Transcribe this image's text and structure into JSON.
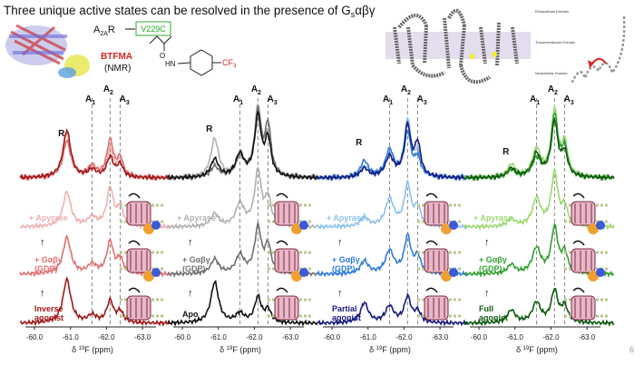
{
  "title": {
    "main": "Three unique active states can be resolved in the presence of G",
    "sub": "s",
    "tail": "αβγ"
  },
  "construct": {
    "receptor": "A",
    "receptor_sub": "2A",
    "receptor_tail": "R",
    "mutation": "V229C"
  },
  "probe": {
    "name": "BTFMA",
    "method": "(NMR)",
    "oxygen": "O",
    "amine": "HN",
    "cf": "CF",
    "cf_sub": "3"
  },
  "membrane_labels": [
    "Extracellular Domain",
    "Transmembrane Domain",
    "Intracellular Domain"
  ],
  "page_number": "6",
  "panels": [
    {
      "peaks": {
        "r": "R",
        "a1": "A",
        "a1_sub": "1",
        "a2": "A",
        "a2_sub": "2",
        "a3": "A",
        "a3_sub": "3"
      },
      "apyrase": "+ Apyrase",
      "gprotein": [
        "+ Gαβγ",
        "(GDP)"
      ],
      "ligand": [
        "Inverse",
        "agonist"
      ],
      "ticks": [
        "-60.0",
        "-61.0",
        "-62.0",
        "-63.0"
      ],
      "axis": {
        "pre": "δ ",
        "sup": "19",
        "post": "F (ppm)"
      }
    },
    {
      "peaks": {
        "r": "R",
        "a1": "A",
        "a1_sub": "1",
        "a2": "A",
        "a2_sub": "2",
        "a3": "A",
        "a3_sub": "3"
      },
      "apyrase": "+ Apyrase",
      "gprotein": [
        "+ Gαβγ",
        "(GDP)"
      ],
      "ligand": [
        "Apo"
      ],
      "ticks": [
        "-60.0",
        "-61.0",
        "-62.0",
        "-63.0"
      ],
      "axis": {
        "pre": "δ ",
        "sup": "19",
        "post": "F (ppm)"
      }
    },
    {
      "peaks": {
        "r": "R",
        "a1": "A",
        "a1_sub": "1",
        "a2": "A",
        "a2_sub": "2",
        "a3": "A",
        "a3_sub": "3"
      },
      "apyrase": "+ Apyrase",
      "gprotein": [
        "+ Gαβγ",
        "(GDP)"
      ],
      "ligand": [
        "Partial",
        "agonist"
      ],
      "ticks": [
        "-60.0",
        "-61.0",
        "-62.0",
        "-63.0"
      ],
      "axis": {
        "pre": "δ ",
        "sup": "19",
        "post": "F (ppm)"
      }
    },
    {
      "peaks": {
        "r": "R",
        "a1": "A",
        "a1_sub": "1",
        "a2": "A",
        "a2_sub": "2",
        "a3": "A",
        "a3_sub": "3"
      },
      "apyrase": "+ Apyrase",
      "gprotein": [
        "+ Gαβγ",
        "(GDP)"
      ],
      "ligand": [
        "Full",
        "agonist"
      ],
      "ticks": [
        "-60.0",
        "-61.0",
        "-62.0",
        "-63.0"
      ],
      "axis": {
        "pre": "δ ",
        "sup": "19",
        "post": "F (ppm)"
      }
    }
  ]
}
